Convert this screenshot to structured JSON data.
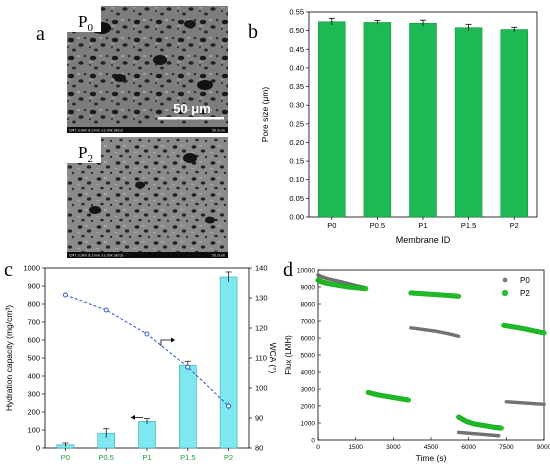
{
  "panels": {
    "a": "a",
    "b": "b",
    "c": "c",
    "d": "d"
  },
  "sem": {
    "top_label_base": "P",
    "top_label_sub": "0",
    "bottom_label_base": "P",
    "bottom_label_sub": "2",
    "scalebar": "50 μm",
    "top_caption": "CMT 3.0kV 8.2mm x1.00k SE(U)",
    "top_caption_right": "50.0um",
    "bottom_caption": "CMT 3.0kV 8.1mm x1.00k SE(U)",
    "bottom_caption_right": "50.0um"
  },
  "colors": {
    "bar_green": "#1db954",
    "bar_cyan": "#7fe7ef",
    "wca_line": "#2b55c8",
    "p0_series": "#7a7a7a",
    "p2_series": "#22c12a",
    "green_tick_text": "#15a03a"
  },
  "chart_data": [
    {
      "id": "b",
      "type": "bar",
      "categories": [
        "P0",
        "P0.5",
        "P1",
        "P1.5",
        "P2"
      ],
      "values": [
        0.524,
        0.522,
        0.52,
        0.508,
        0.503
      ],
      "errors": [
        0.009,
        0.005,
        0.008,
        0.009,
        0.006
      ],
      "xlabel": "Membrane ID",
      "ylabel": "Pore size (μm)",
      "ylim": [
        0,
        0.55
      ],
      "yticks": [
        "0.00",
        "0.05",
        "0.10",
        "0.15",
        "0.20",
        "0.25",
        "0.30",
        "0.35",
        "0.40",
        "0.45",
        "0.50",
        "0.55"
      ]
    },
    {
      "id": "c",
      "type": "bar",
      "categories": [
        "P0",
        "P0.5",
        "P1",
        "P1.5",
        "P2"
      ],
      "values": [
        18,
        82,
        148,
        460,
        950
      ],
      "errors": [
        10,
        25,
        15,
        22,
        28
      ],
      "ylabel": "Hydration capacity (mg/cm³)",
      "ylim": [
        0,
        1000
      ],
      "yticks": [
        "0",
        "100",
        "200",
        "300",
        "400",
        "500",
        "600",
        "700",
        "800",
        "900",
        "1000"
      ],
      "secondary": {
        "type": "line",
        "values": [
          131,
          126,
          118,
          107,
          94
        ],
        "errors": [
          0.5,
          0.5,
          0.5,
          1.0,
          1.2
        ],
        "ylabel": "WCA (°)",
        "ylim": [
          80,
          140
        ],
        "yticks": [
          "80",
          "90",
          "100",
          "110",
          "120",
          "130",
          "140"
        ]
      }
    },
    {
      "id": "d",
      "type": "scatter",
      "xlabel": "Time (s)",
      "ylabel": "Flux (LMH)",
      "xlim": [
        0,
        9000
      ],
      "ylim": [
        0,
        10000
      ],
      "xticks": [
        "0",
        "1500",
        "3000",
        "4500",
        "6000",
        "7500",
        "9000"
      ],
      "yticks": [
        "0",
        "1000",
        "2000",
        "3000",
        "4000",
        "5000",
        "6000",
        "7000",
        "8000",
        "9000",
        "10000"
      ],
      "legend": "top-right",
      "series": [
        {
          "name": "P0",
          "segments": [
            {
              "x": [
                0,
                150,
                400,
                800,
                1200,
                1600,
                1900
              ],
              "y": [
                9700,
                9600,
                9480,
                9350,
                9200,
                9050,
                8950
              ]
            },
            {
              "x": [
                3700,
                4200,
                4700,
                5200,
                5600
              ],
              "y": [
                6600,
                6500,
                6400,
                6250,
                6100
              ]
            },
            {
              "x": [
                5600,
                6000,
                6400,
                6800,
                7200
              ],
              "y": [
                450,
                400,
                350,
                300,
                250
              ]
            },
            {
              "x": [
                7500,
                8000,
                8500,
                9000
              ],
              "y": [
                2250,
                2200,
                2150,
                2100
              ]
            }
          ]
        },
        {
          "name": "P2",
          "segments": [
            {
              "x": [
                0,
                150,
                400,
                800,
                1200,
                1600,
                1900
              ],
              "y": [
                9400,
                9300,
                9200,
                9100,
                9000,
                8950,
                8900
              ]
            },
            {
              "x": [
                2000,
                2400,
                2800,
                3200,
                3600
              ],
              "y": [
                2800,
                2650,
                2550,
                2450,
                2350
              ]
            },
            {
              "x": [
                3700,
                4200,
                4700,
                5200,
                5600
              ],
              "y": [
                8650,
                8600,
                8550,
                8500,
                8450
              ]
            },
            {
              "x": [
                5600,
                5900,
                6200,
                6600,
                7000,
                7300
              ],
              "y": [
                1350,
                1100,
                950,
                850,
                750,
                700
              ]
            },
            {
              "x": [
                7400,
                7800,
                8200,
                8600,
                9000
              ],
              "y": [
                6750,
                6650,
                6550,
                6420,
                6300
              ]
            }
          ]
        }
      ]
    }
  ]
}
